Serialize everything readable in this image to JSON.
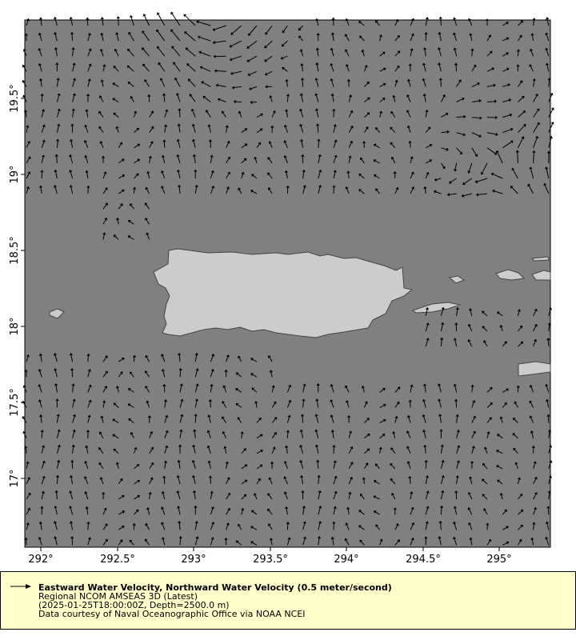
{
  "map": {
    "lon_range": [
      291.895,
      295.335
    ],
    "lat_range": [
      16.547,
      20.016
    ],
    "ocean_color": "#808080",
    "land_color": "#cccccc",
    "x_ticks": [
      "292°",
      "292.5°",
      "293°",
      "293.5°",
      "294°",
      "294.5°",
      "295°"
    ],
    "y_ticks": [
      "19.5°",
      "19°",
      "18.5°",
      "18°",
      "17.5°",
      "17°"
    ],
    "vector_color": "#000000"
  },
  "legend": {
    "arrow_icon": "arrow-right-icon",
    "title": "Eastward Water Velocity, Northward Water Velocity (0.5 meter/second)",
    "line2": "Regional NCOM AMSEAS 3D (Latest)",
    "line3": "(2025-01-25T18:00:00Z, Depth=2500.0 m)",
    "line4": "Data courtesy of Naval Oceanographic Office via NOAA NCEI",
    "background": "#ffffcc"
  }
}
